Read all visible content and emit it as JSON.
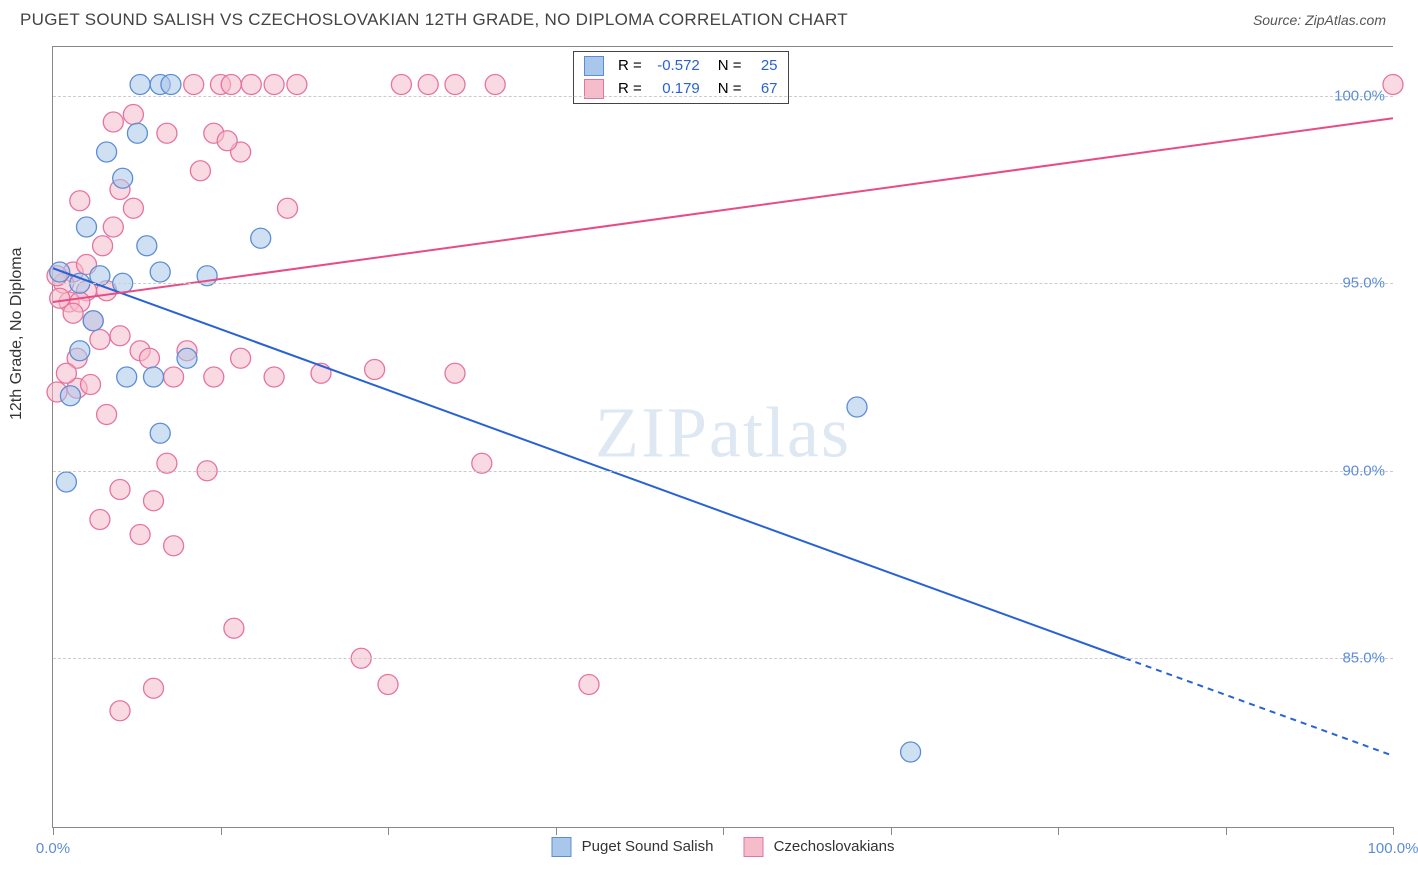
{
  "header": {
    "title": "PUGET SOUND SALISH VS CZECHOSLOVAKIAN 12TH GRADE, NO DIPLOMA CORRELATION CHART",
    "source": "Source: ZipAtlas.com"
  },
  "chart": {
    "type": "scatter",
    "ylabel": "12th Grade, No Diploma",
    "xlim": [
      0,
      100
    ],
    "ylim": [
      80.5,
      101.3
    ],
    "xticks": [
      0,
      12.5,
      25,
      37.5,
      50,
      62.5,
      75,
      87.5,
      100
    ],
    "xtick_labels": {
      "0": "0.0%",
      "100": "100.0%"
    },
    "yticks": [
      85.0,
      90.0,
      95.0,
      100.0
    ],
    "ytick_labels": [
      "85.0%",
      "90.0%",
      "95.0%",
      "100.0%"
    ],
    "grid_color": "#cccccc",
    "axis_color": "#888888",
    "background_color": "#ffffff",
    "watermark": "ZIPatlas"
  },
  "series": {
    "blue": {
      "name": "Puget Sound Salish",
      "color_fill": "#a9c7ea",
      "color_stroke": "#5b8dd6",
      "fill_opacity": 0.55,
      "marker_radius": 10,
      "R": "-0.572",
      "N": "25",
      "trend": {
        "x1": 0,
        "y1": 95.4,
        "x2_solid": 80,
        "y2_solid": 85.0,
        "x2_dash": 100,
        "y2_dash": 82.4,
        "color": "#2962d6",
        "width": 2
      },
      "points": [
        [
          8.0,
          100.3
        ],
        [
          6.3,
          99.0
        ],
        [
          2.0,
          95.0
        ],
        [
          3.5,
          95.2
        ],
        [
          5.2,
          95.0
        ],
        [
          5.2,
          97.8
        ],
        [
          3.0,
          94.0
        ],
        [
          1.0,
          89.7
        ],
        [
          5.5,
          92.5
        ],
        [
          8.0,
          95.3
        ],
        [
          8.8,
          100.3
        ],
        [
          7.0,
          96.0
        ],
        [
          7.5,
          92.5
        ],
        [
          10.0,
          93.0
        ],
        [
          11.5,
          95.2
        ],
        [
          15.5,
          96.2
        ],
        [
          8.0,
          91.0
        ],
        [
          60.0,
          91.7
        ],
        [
          64.0,
          82.5
        ],
        [
          6.5,
          100.3
        ],
        [
          4.0,
          98.5
        ],
        [
          2.5,
          96.5
        ],
        [
          2.0,
          93.2
        ],
        [
          1.3,
          92.0
        ],
        [
          0.5,
          95.3
        ]
      ]
    },
    "pink": {
      "name": "Czechoslovakians",
      "color_fill": "#f5bccb",
      "color_stroke": "#e573a1",
      "fill_opacity": 0.55,
      "marker_radius": 10,
      "R": "0.179",
      "N": "67",
      "trend": {
        "x1": 0,
        "y1": 94.5,
        "x2": 100,
        "y2": 99.4,
        "color": "#e84b86",
        "width": 2
      },
      "points": [
        [
          10.5,
          100.3
        ],
        [
          12.5,
          100.3
        ],
        [
          13.3,
          100.3
        ],
        [
          14.8,
          100.3
        ],
        [
          16.5,
          100.3
        ],
        [
          18.2,
          100.3
        ],
        [
          26.0,
          100.3
        ],
        [
          28.0,
          100.3
        ],
        [
          30.0,
          100.3
        ],
        [
          33.0,
          100.3
        ],
        [
          100.0,
          100.3
        ],
        [
          8.5,
          99.0
        ],
        [
          12.0,
          99.0
        ],
        [
          11.0,
          98.0
        ],
        [
          14.0,
          98.5
        ],
        [
          13.0,
          98.8
        ],
        [
          2.5,
          94.8
        ],
        [
          4.0,
          94.8
        ],
        [
          1.5,
          95.3
        ],
        [
          2.5,
          95.5
        ],
        [
          3.7,
          96.0
        ],
        [
          5.0,
          97.5
        ],
        [
          6.0,
          97.0
        ],
        [
          4.5,
          96.5
        ],
        [
          3.0,
          94.0
        ],
        [
          1.8,
          93.0
        ],
        [
          1.2,
          94.5
        ],
        [
          2.0,
          94.5
        ],
        [
          0.8,
          95.0
        ],
        [
          1.5,
          94.2
        ],
        [
          0.5,
          94.6
        ],
        [
          3.5,
          93.5
        ],
        [
          5.0,
          93.6
        ],
        [
          6.5,
          93.2
        ],
        [
          7.2,
          93.0
        ],
        [
          9.0,
          92.5
        ],
        [
          10.0,
          93.2
        ],
        [
          12.0,
          92.5
        ],
        [
          14.0,
          93.0
        ],
        [
          16.5,
          92.5
        ],
        [
          20.0,
          92.6
        ],
        [
          24.0,
          92.7
        ],
        [
          30.0,
          92.6
        ],
        [
          1.8,
          92.2
        ],
        [
          4.0,
          91.5
        ],
        [
          8.5,
          90.2
        ],
        [
          11.5,
          90.0
        ],
        [
          32.0,
          90.2
        ],
        [
          5.0,
          89.5
        ],
        [
          7.5,
          89.2
        ],
        [
          3.5,
          88.7
        ],
        [
          6.5,
          88.3
        ],
        [
          9.0,
          88.0
        ],
        [
          13.5,
          85.8
        ],
        [
          23.0,
          85.0
        ],
        [
          7.5,
          84.2
        ],
        [
          25.0,
          84.3
        ],
        [
          40.0,
          84.3
        ],
        [
          5.0,
          83.6
        ],
        [
          2.0,
          97.2
        ],
        [
          4.5,
          99.3
        ],
        [
          6.0,
          99.5
        ],
        [
          17.5,
          97.0
        ],
        [
          2.8,
          92.3
        ],
        [
          1.0,
          92.6
        ],
        [
          0.3,
          95.2
        ],
        [
          0.3,
          92.1
        ]
      ]
    }
  },
  "top_legend": {
    "rows": [
      {
        "R_label": "R =",
        "R": "-0.572",
        "N_label": "N =",
        "N": "25"
      },
      {
        "R_label": "R =",
        "R": "0.179",
        "N_label": "N =",
        "N": "67"
      }
    ]
  },
  "bottom_legend": {
    "items": [
      {
        "label": "Puget Sound Salish",
        "fill": "#a9c7ea",
        "stroke": "#5b8dd6"
      },
      {
        "label": "Czechoslovakians",
        "fill": "#f5bccb",
        "stroke": "#e573a1"
      }
    ]
  },
  "tick_label_color": "#5b8dd6"
}
